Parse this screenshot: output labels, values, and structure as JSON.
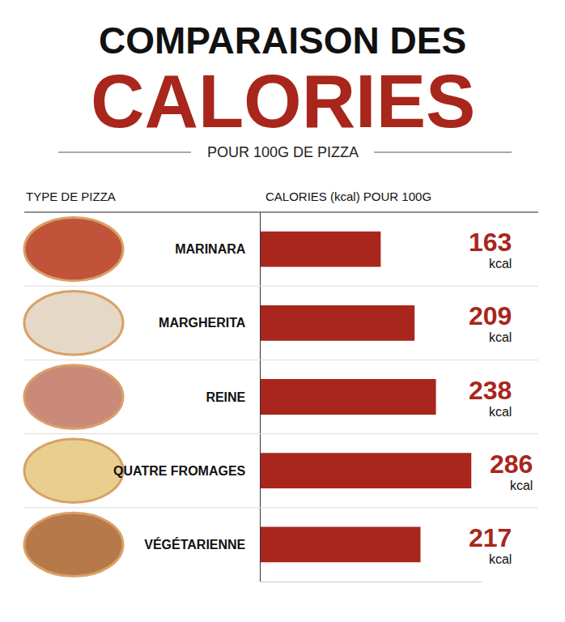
{
  "chart_data": {
    "type": "bar",
    "orientation": "horizontal",
    "title": [
      "COMPARAISON DES",
      "CALORIES"
    ],
    "subtitle": "POUR 100G DE PIZZA",
    "y_label": "TYPE DE PIZZA",
    "x_label": "CALORIES (kcal) POUR 100G",
    "categories": [
      "MARINARA",
      "MARGHERITA",
      "REINE",
      "QUATRE FROMAGES",
      "VÉGÉTARIENNE"
    ],
    "values": [
      163,
      209,
      238,
      286,
      217
    ],
    "value_labels": [
      "163 kcal",
      "209 kcal",
      "238 kcal",
      "286 kcal",
      "217 kcal"
    ],
    "color": "#a8261b",
    "xlim": [
      0,
      300
    ],
    "xticks": [],
    "tick_labels": "y",
    "grid": false,
    "data_labels": true
  }
}
